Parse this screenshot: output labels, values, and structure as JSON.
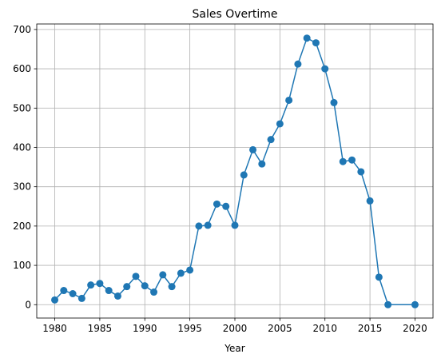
{
  "chart_data": {
    "type": "line",
    "title": "Sales Overtime",
    "xlabel": "Year",
    "ylabel": "",
    "xlim": [
      1978,
      2022
    ],
    "ylim": [
      -34,
      714
    ],
    "xticks": [
      1980,
      1985,
      1990,
      1995,
      2000,
      2005,
      2010,
      2015,
      2020
    ],
    "yticks": [
      0,
      100,
      200,
      300,
      400,
      500,
      600,
      700
    ],
    "grid": true,
    "legend": "none",
    "markers": true,
    "color": "#1f77b4",
    "series": [
      {
        "x": [
          1980,
          1981,
          1982,
          1983,
          1984,
          1985,
          1986,
          1987,
          1988,
          1989,
          1990,
          1991,
          1992,
          1993,
          1994,
          1995,
          1996,
          1997,
          1998,
          1999,
          2000,
          2001,
          2002,
          2003,
          2004,
          2005,
          2006,
          2007,
          2008,
          2009,
          2010,
          2011,
          2012,
          2013,
          2014,
          2015,
          2016,
          2017,
          2020
        ],
        "y": [
          12,
          36,
          28,
          16,
          50,
          54,
          36,
          22,
          46,
          72,
          48,
          32,
          76,
          46,
          80,
          88,
          200,
          202,
          256,
          250,
          202,
          330,
          394,
          358,
          420,
          460,
          520,
          612,
          678,
          666,
          600,
          514,
          364,
          368,
          338,
          264,
          70,
          0,
          0
        ]
      }
    ]
  }
}
